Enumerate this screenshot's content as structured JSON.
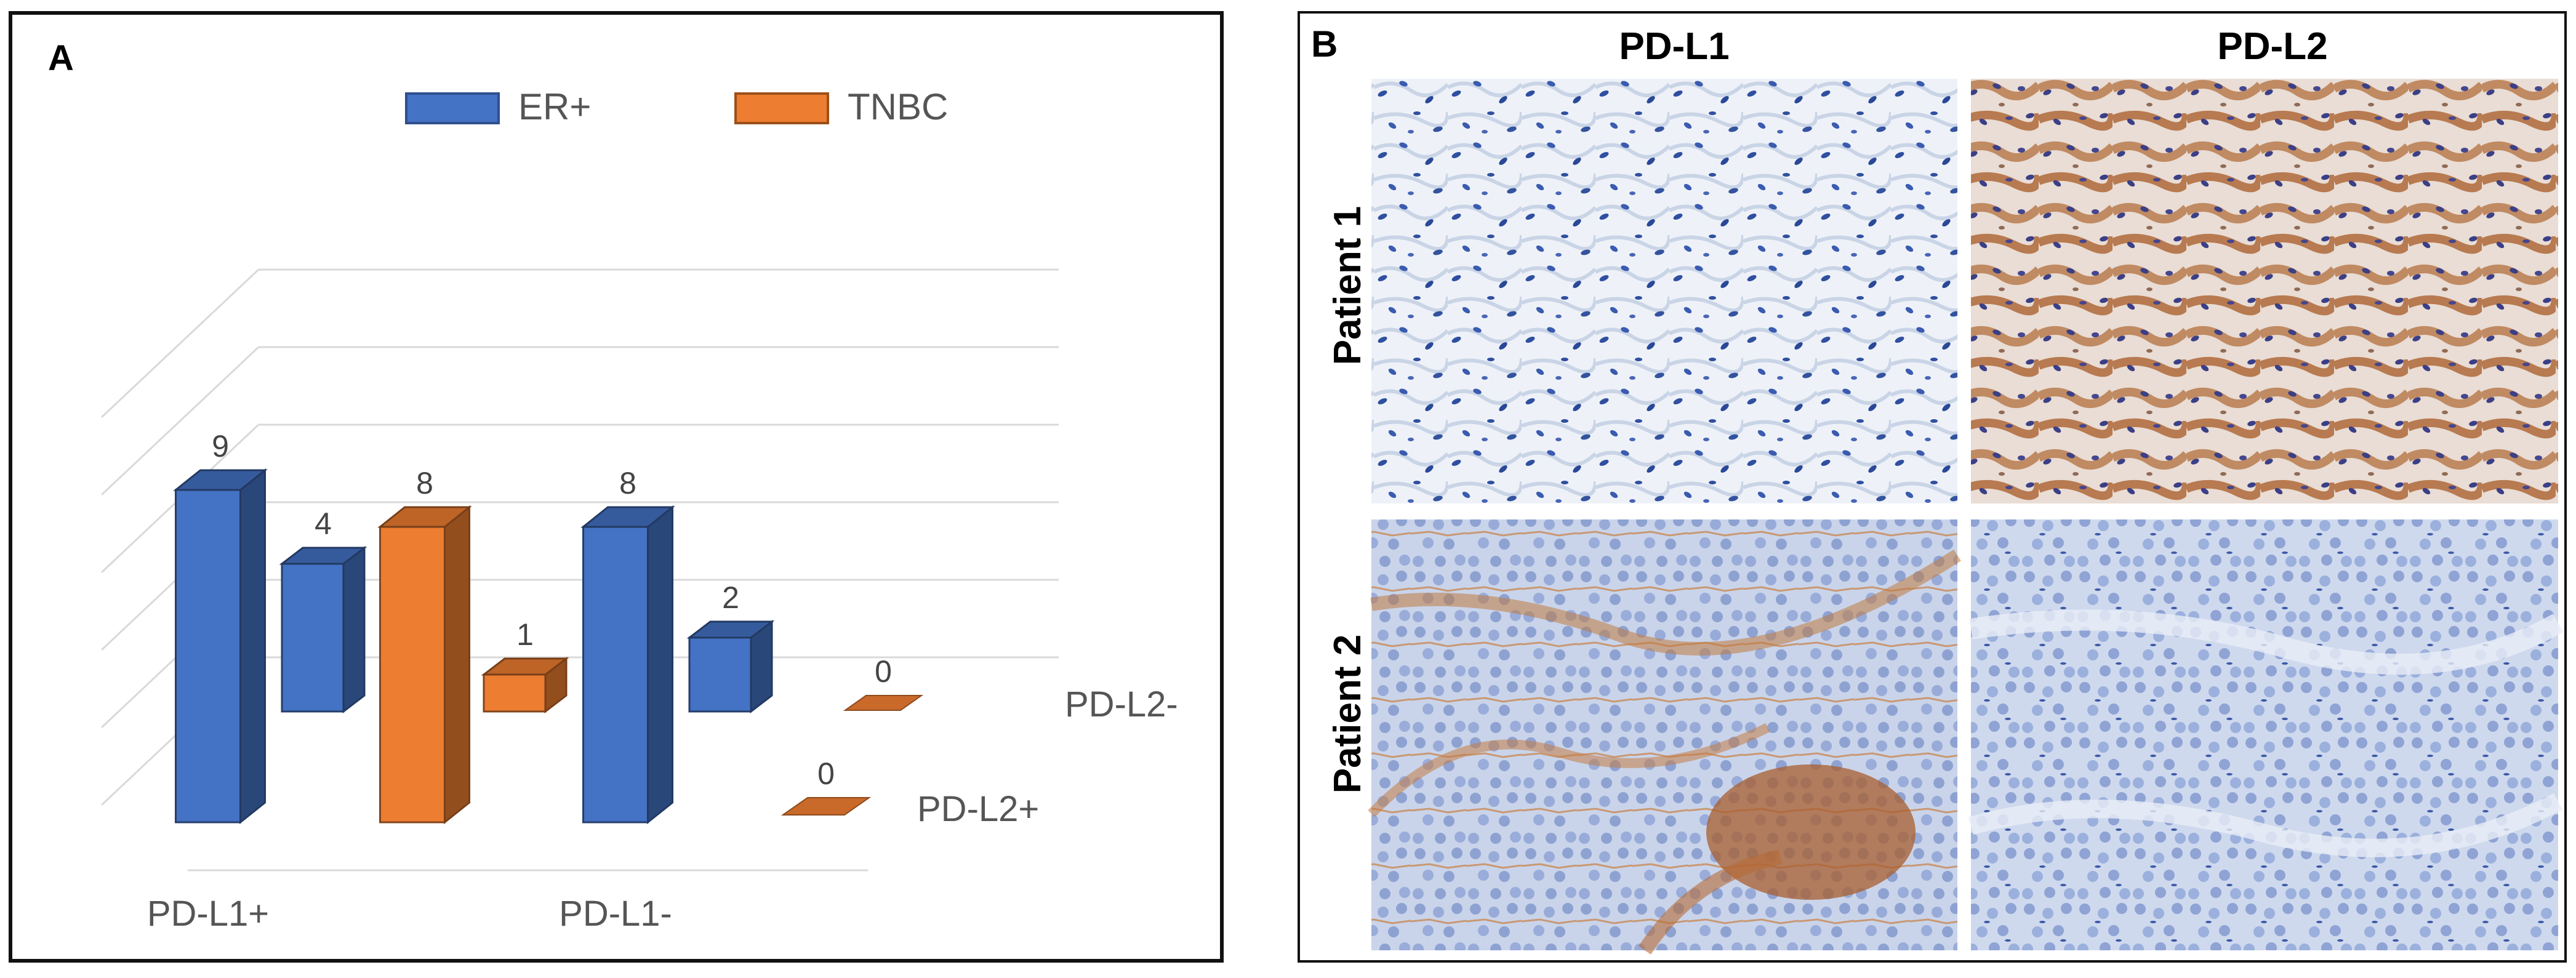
{
  "panel_a": {
    "label": "A",
    "chart_data": {
      "type": "bar",
      "title": "",
      "legend_position": "top",
      "series": [
        {
          "name": "ER+",
          "color": "#4472C4"
        },
        {
          "name": "TNBC",
          "color": "#ED7D31"
        }
      ],
      "x_groups": [
        "PD-L1+",
        "PD-L1-"
      ],
      "depth_rows": [
        "PD-L2+",
        "PD-L2-"
      ],
      "bars": [
        {
          "series": "ER+",
          "pdl1": "PD-L1+",
          "pdl2": "PD-L2+",
          "value": 9
        },
        {
          "series": "ER+",
          "pdl1": "PD-L1+",
          "pdl2": "PD-L2-",
          "value": 4
        },
        {
          "series": "TNBC",
          "pdl1": "PD-L1+",
          "pdl2": "PD-L2+",
          "value": 8
        },
        {
          "series": "TNBC",
          "pdl1": "PD-L1+",
          "pdl2": "PD-L2-",
          "value": 1
        },
        {
          "series": "ER+",
          "pdl1": "PD-L1-",
          "pdl2": "PD-L2+",
          "value": 8
        },
        {
          "series": "ER+",
          "pdl1": "PD-L1-",
          "pdl2": "PD-L2-",
          "value": 2
        },
        {
          "series": "TNBC",
          "pdl1": "PD-L1-",
          "pdl2": "PD-L2+",
          "value": 0
        },
        {
          "series": "TNBC",
          "pdl1": "PD-L1-",
          "pdl2": "PD-L2-",
          "value": 0
        }
      ],
      "ylim": [
        0,
        10
      ],
      "grid": true
    }
  },
  "panel_b": {
    "label": "B",
    "columns": [
      "PD-L1",
      "PD-L2"
    ],
    "rows": [
      "Patient 1",
      "Patient 2"
    ]
  }
}
